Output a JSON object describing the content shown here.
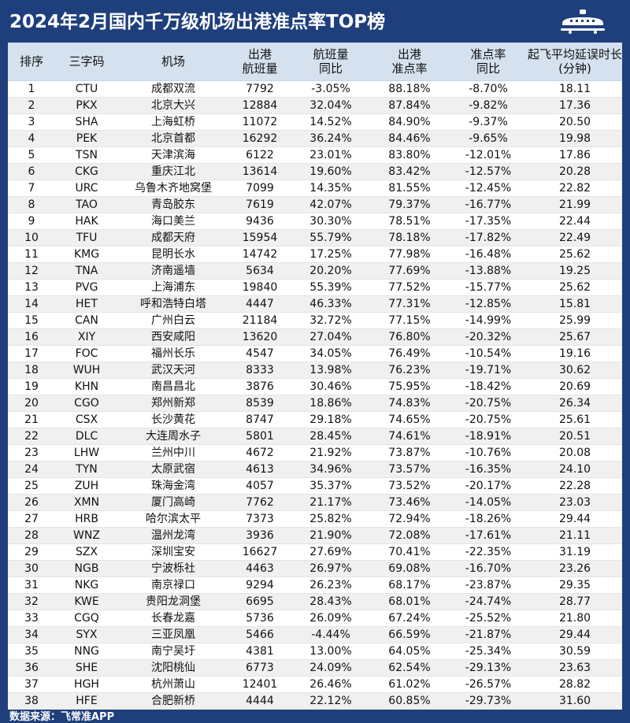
{
  "title": "2024年2月国内千万级机场出港准点率TOP榜",
  "icon": "airplane-icon",
  "headers": {
    "rank": "排序",
    "code": "三字码",
    "airport": "机场",
    "flights_line1": "出港",
    "flights_line2": "航班量",
    "flights_yoy_line1": "航班量",
    "flights_yoy_line2": "同比",
    "otp_line1": "出港",
    "otp_line2": "准点率",
    "otp_yoy_line1": "准点率",
    "otp_yoy_line2": "同比",
    "delay_line1": "起飞平均延误时长",
    "delay_line2": "(分钟)"
  },
  "rows": [
    [
      "1",
      "CTU",
      "成都双流",
      "7792",
      "-3.05%",
      "88.18%",
      "-8.70%",
      "18.11"
    ],
    [
      "2",
      "PKX",
      "北京大兴",
      "12884",
      "32.04%",
      "87.84%",
      "-9.82%",
      "17.36"
    ],
    [
      "3",
      "SHA",
      "上海虹桥",
      "11072",
      "14.52%",
      "84.90%",
      "-9.37%",
      "20.50"
    ],
    [
      "4",
      "PEK",
      "北京首都",
      "16292",
      "36.24%",
      "84.46%",
      "-9.65%",
      "19.98"
    ],
    [
      "5",
      "TSN",
      "天津滨海",
      "6122",
      "23.01%",
      "83.80%",
      "-12.01%",
      "17.86"
    ],
    [
      "6",
      "CKG",
      "重庆江北",
      "13614",
      "19.60%",
      "83.42%",
      "-12.57%",
      "20.28"
    ],
    [
      "7",
      "URC",
      "乌鲁木齐地窝堡",
      "7099",
      "14.35%",
      "81.55%",
      "-12.45%",
      "22.82"
    ],
    [
      "8",
      "TAO",
      "青岛胶东",
      "7619",
      "42.07%",
      "79.37%",
      "-16.77%",
      "21.99"
    ],
    [
      "9",
      "HAK",
      "海口美兰",
      "9436",
      "30.30%",
      "78.51%",
      "-17.35%",
      "22.44"
    ],
    [
      "10",
      "TFU",
      "成都天府",
      "15954",
      "55.79%",
      "78.18%",
      "-17.82%",
      "22.49"
    ],
    [
      "11",
      "KMG",
      "昆明长水",
      "14742",
      "17.25%",
      "77.98%",
      "-16.48%",
      "25.62"
    ],
    [
      "12",
      "TNA",
      "济南遥墙",
      "5634",
      "20.20%",
      "77.69%",
      "-13.88%",
      "19.25"
    ],
    [
      "13",
      "PVG",
      "上海浦东",
      "19840",
      "55.39%",
      "77.52%",
      "-15.77%",
      "25.62"
    ],
    [
      "14",
      "HET",
      "呼和浩特白塔",
      "4447",
      "46.33%",
      "77.31%",
      "-12.85%",
      "15.81"
    ],
    [
      "15",
      "CAN",
      "广州白云",
      "21184",
      "32.72%",
      "77.15%",
      "-14.99%",
      "25.99"
    ],
    [
      "16",
      "XIY",
      "西安咸阳",
      "13620",
      "27.04%",
      "76.80%",
      "-20.32%",
      "25.67"
    ],
    [
      "17",
      "FOC",
      "福州长乐",
      "4547",
      "34.05%",
      "76.49%",
      "-10.54%",
      "19.16"
    ],
    [
      "18",
      "WUH",
      "武汉天河",
      "8333",
      "13.98%",
      "76.23%",
      "-19.71%",
      "30.62"
    ],
    [
      "19",
      "KHN",
      "南昌昌北",
      "3876",
      "30.46%",
      "75.95%",
      "-18.42%",
      "20.69"
    ],
    [
      "20",
      "CGO",
      "郑州新郑",
      "8539",
      "18.86%",
      "74.83%",
      "-20.75%",
      "26.34"
    ],
    [
      "21",
      "CSX",
      "长沙黄花",
      "8747",
      "29.18%",
      "74.65%",
      "-20.75%",
      "25.61"
    ],
    [
      "22",
      "DLC",
      "大连周水子",
      "5801",
      "28.45%",
      "74.61%",
      "-18.91%",
      "20.51"
    ],
    [
      "23",
      "LHW",
      "兰州中川",
      "4672",
      "21.92%",
      "73.87%",
      "-10.76%",
      "20.08"
    ],
    [
      "24",
      "TYN",
      "太原武宿",
      "4613",
      "34.96%",
      "73.57%",
      "-16.35%",
      "24.10"
    ],
    [
      "25",
      "ZUH",
      "珠海金湾",
      "4057",
      "35.37%",
      "73.52%",
      "-20.17%",
      "22.28"
    ],
    [
      "26",
      "XMN",
      "厦门高崎",
      "7762",
      "21.17%",
      "73.46%",
      "-14.05%",
      "23.03"
    ],
    [
      "27",
      "HRB",
      "哈尔滨太平",
      "7373",
      "25.82%",
      "72.94%",
      "-18.26%",
      "29.44"
    ],
    [
      "28",
      "WNZ",
      "温州龙湾",
      "3936",
      "21.90%",
      "72.08%",
      "-17.61%",
      "21.11"
    ],
    [
      "29",
      "SZX",
      "深圳宝安",
      "16627",
      "27.69%",
      "70.41%",
      "-22.35%",
      "31.19"
    ],
    [
      "30",
      "NGB",
      "宁波栎社",
      "4463",
      "26.97%",
      "69.08%",
      "-16.70%",
      "23.26"
    ],
    [
      "31",
      "NKG",
      "南京禄口",
      "9294",
      "26.23%",
      "68.17%",
      "-23.87%",
      "29.35"
    ],
    [
      "32",
      "KWE",
      "贵阳龙洞堡",
      "6695",
      "28.43%",
      "68.01%",
      "-24.74%",
      "28.77"
    ],
    [
      "33",
      "CGQ",
      "长春龙嘉",
      "5736",
      "26.09%",
      "67.24%",
      "-25.52%",
      "21.80"
    ],
    [
      "34",
      "SYX",
      "三亚凤凰",
      "5466",
      "-4.44%",
      "66.59%",
      "-21.87%",
      "29.44"
    ],
    [
      "35",
      "NNG",
      "南宁吴圩",
      "4381",
      "13.00%",
      "64.05%",
      "-25.34%",
      "30.59"
    ],
    [
      "36",
      "SHE",
      "沈阳桃仙",
      "6773",
      "24.09%",
      "62.54%",
      "-29.13%",
      "23.63"
    ],
    [
      "37",
      "HGH",
      "杭州萧山",
      "12401",
      "26.46%",
      "61.02%",
      "-26.57%",
      "28.82"
    ],
    [
      "38",
      "HFE",
      "合肥新桥",
      "4444",
      "22.12%",
      "60.85%",
      "-29.73%",
      "31.60"
    ]
  ],
  "footer": "数据来源：飞常准APP",
  "colors": {
    "background": "#1e3f7b",
    "header_row": "#d5e1ef",
    "stripe": "#f0f0f0"
  }
}
